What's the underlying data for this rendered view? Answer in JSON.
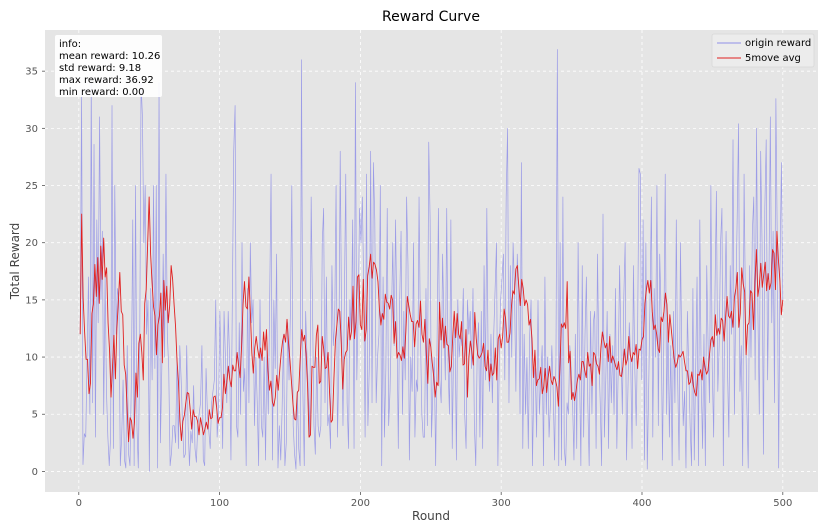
{
  "chart_data": {
    "type": "line",
    "title": "Reward Curve",
    "xlabel": "Round",
    "ylabel": "Total Reward",
    "xlim": [
      -24,
      525
    ],
    "ylim": [
      -1.8,
      38.6
    ],
    "xticks": [
      0,
      100,
      200,
      300,
      400,
      500
    ],
    "yticks": [
      0,
      5,
      10,
      15,
      20,
      25,
      30,
      35
    ],
    "grid": true,
    "legend_position": "top-right",
    "info_box": {
      "position": "top-left",
      "lines": [
        "info:",
        "mean reward: 10.26",
        "std reward: 9.18",
        "max reward: 36.92",
        "min reward: 0.00"
      ]
    },
    "x_start": 1,
    "x_end": 500,
    "series": [
      {
        "name": "origin reward",
        "color": "#8f8fe8",
        "values": [
          12.0,
          33.0,
          0.6,
          3.3,
          3.0,
          10.0,
          17.0,
          5.0,
          34.0,
          6.0,
          28.6,
          3.0,
          22.0,
          13.0,
          31.0,
          15.0,
          21.0,
          5.0,
          17.0,
          7.0,
          3.0,
          0.5,
          3.0,
          32.0,
          2.0,
          25.0,
          12.0,
          16.0,
          15.0,
          0.5,
          3.0,
          8.0,
          1.0,
          0.3,
          11.0,
          1.5,
          0.5,
          8.0,
          22.0,
          0.5,
          25.0,
          4.0,
          0.3,
          10.0,
          34.0,
          31.0,
          20.0,
          25.0,
          12.0,
          15.0,
          0.0,
          16.0,
          8.0,
          25.0,
          9.0,
          25.0,
          0.3,
          34.0,
          2.5,
          9.0,
          19.0,
          10.0,
          26.0,
          12.0,
          9.0,
          0.5,
          1.6,
          4.0,
          4.0,
          2.5,
          10.0,
          2.0,
          11.0,
          8.0,
          4.0,
          1.2,
          1.5,
          11.0,
          4.0,
          0.5,
          3.5,
          2.5,
          7.5,
          2.0,
          0.8,
          4.0,
          5.0,
          6.0,
          11.0,
          1.0,
          0.5,
          9.0,
          5.0,
          3.5,
          2.0,
          6.0,
          7.0,
          8.0,
          15.0,
          3.0,
          5.0,
          14.0,
          8.0,
          2.0,
          14.0,
          10.0,
          6.0,
          14.0,
          10.0,
          1.0,
          15.0,
          28.0,
          32.0,
          4.0,
          3.0,
          13.0,
          5.0,
          20.0,
          7.0,
          9.0,
          0.5,
          16.0,
          6.0,
          20.0,
          13.0,
          15.0,
          4.0,
          10.0,
          6.0,
          0.5,
          15.0,
          4.0,
          3.0,
          10.0,
          1.0,
          11.0,
          5.0,
          15.0,
          26.0,
          1.0,
          15.0,
          9.0,
          19.0,
          0.3,
          4.0,
          1.0,
          5.5,
          12.0,
          0.5,
          2.5,
          13.0,
          8.0,
          14.0,
          25.0,
          4.0,
          1.5,
          0.2,
          7.0,
          2.0,
          0.5,
          36.0,
          7.0,
          0.5,
          14.0,
          10.0,
          7.0,
          3.0,
          24.0,
          14.0,
          4.0,
          1.5,
          10.0,
          4.0,
          3.0,
          4.0,
          20.0,
          23.0,
          6.0,
          17.0,
          4.0,
          5.0,
          2.0,
          18.0,
          11.0,
          13.0,
          25.0,
          3.0,
          9.0,
          28.0,
          13.0,
          4.0,
          15.0,
          26.0,
          6.0,
          2.0,
          15.0,
          12.0,
          22.0,
          2.0,
          34.0,
          8.0,
          14.0,
          23.0,
          20.0,
          24.0,
          16.0,
          3.0,
          26.0,
          4.0,
          9.0,
          28.0,
          6.0,
          27.0,
          22.0,
          6.0,
          10.0,
          12.0,
          25.0,
          0.5,
          17.0,
          3.0,
          9.0,
          23.0,
          4.0,
          7.0,
          13.0,
          20.0,
          11.0,
          22.0,
          13.0,
          2.0,
          15.0,
          21.0,
          5.0,
          14.0,
          8.0,
          24.0,
          18.0,
          1.0,
          10.0,
          7.0,
          20.0,
          3.0,
          8.0,
          7.0,
          24.0,
          12.0,
          5.0,
          3.0,
          3.0,
          16.0,
          4.0,
          28.8,
          22.0,
          3.0,
          7.0,
          10.0,
          0.5,
          11.0,
          23.0,
          8.0,
          6.0,
          19.0,
          13.0,
          8.0,
          23.0,
          9.0,
          5.0,
          22.0,
          2.0,
          11.0,
          13.0,
          1.0,
          15.0,
          10.0,
          12.0,
          11.0,
          16.0,
          5.0,
          2.0,
          15.0,
          12.0,
          14.0,
          9.0,
          16.0,
          4.0,
          0.5,
          10.0,
          13.0,
          3.0,
          14.0,
          2.0,
          18.0,
          8.0,
          23.0,
          9.0,
          7.0,
          12.0,
          6.0,
          12.0,
          16.0,
          20.0,
          0.5,
          10.0,
          15.0,
          17.0,
          19.0,
          8.0,
          24.0,
          30.0,
          6.0,
          18.0,
          10.0,
          20.0,
          16.0,
          7.0,
          19.0,
          16.0,
          5.0,
          27.0,
          2.0,
          12.0,
          5.0,
          10.0,
          2.0,
          12.0,
          15.0,
          0.5,
          8.0,
          9.0,
          3.0,
          15.0,
          5.0,
          8.0,
          11.0,
          0.5,
          17.0,
          5.0,
          10.0,
          3.0,
          6.0,
          11.0,
          7.0,
          1.0,
          10.0,
          36.9,
          0.5,
          20.0,
          1.0,
          24.0,
          2.0,
          0.5,
          6.0,
          5.0,
          11.0,
          9.0,
          6.0,
          1.0,
          12.0,
          2.0,
          20.0,
          9.0,
          0.5,
          18.0,
          3.0,
          12.0,
          17.0,
          6.0,
          0.5,
          14.0,
          5.0,
          13.0,
          14.0,
          2.0,
          19.0,
          10.0,
          6.0,
          0.5,
          22.5,
          3.0,
          8.0,
          14.0,
          2.0,
          12.0,
          6.0,
          11.0,
          5.0,
          16.0,
          2.0,
          9.0,
          18.0,
          11.0,
          5.0,
          15.0,
          20.0,
          1.0,
          7.0,
          13.0,
          10.0,
          2.0,
          18.0,
          9.0,
          4.0,
          12.0,
          26.5,
          26.0,
          8.0,
          22.0,
          1.0,
          20.0,
          0.2,
          7.0,
          15.0,
          24.0,
          3.0,
          16.0,
          10.0,
          25.0,
          4.0,
          19.0,
          14.0,
          1.0,
          12.0,
          26.0,
          5.0,
          13.0,
          3.0,
          11.0,
          0.5,
          14.0,
          6.0,
          22.0,
          8.0,
          1.0,
          20.0,
          10.0,
          4.0,
          7.0,
          0.3,
          14.0,
          9.0,
          4.0,
          0.5,
          16.0,
          1.0,
          9.0,
          17.0,
          0.5,
          22.0,
          8.0,
          2.0,
          12.0,
          0.5,
          18.0,
          11.0,
          6.0,
          25.0,
          9.0,
          3.0,
          16.0,
          24.5,
          7.0,
          11.0,
          20.0,
          23.0,
          0.5,
          14.0,
          21.0,
          9.0,
          3.0,
          18.0,
          12.0,
          29.0,
          5.0,
          15.0,
          22.0,
          30.4,
          7.0,
          11.0,
          0.5,
          26.0,
          14.0,
          6.0,
          0.3,
          18.0,
          10.0,
          21.0,
          24.0,
          8.0,
          30.0,
          14.0,
          5.0,
          28.0,
          20.0,
          1.5,
          23.0,
          29.0,
          8.0,
          17.0,
          31.0,
          13.0,
          21.0,
          6.0,
          32.6,
          20.0,
          0.3,
          18.0,
          27.0,
          15.0
        ]
      },
      {
        "name": "5move avg",
        "color": "#e02020",
        "moving_average_window": 5,
        "values": [
          12.0,
          22.5,
          15.2,
          12.2,
          9.8,
          9.8,
          6.8,
          7.7,
          13.8,
          14.6,
          18.1,
          15.3,
          18.7,
          14.7,
          19.7,
          16.8,
          20.4,
          17.0,
          17.8,
          13.0,
          10.6,
          6.5,
          9.1,
          11.9,
          8.1,
          12.5,
          14.8,
          17.4,
          14.0,
          13.7,
          9.3,
          8.5,
          5.4,
          2.6,
          4.7,
          4.4,
          2.9,
          4.3,
          8.6,
          6.5,
          11.2,
          12.0,
          10.4,
          8.0,
          14.7,
          15.9,
          19.9,
          24.0,
          19.0,
          16.5,
          14.4,
          13.6,
          10.2,
          12.8,
          13.6,
          15.6,
          9.5,
          16.7,
          14.1,
          16.2,
          13.0,
          14.5,
          18.0,
          16.8,
          14.6,
          12.7,
          9.7,
          7.8,
          4.4,
          2.7,
          4.4,
          4.9,
          6.0,
          6.9,
          6.8,
          5.4,
          3.7,
          5.4,
          4.8,
          4.8,
          4.4,
          3.2,
          4.7,
          4.0,
          3.2,
          3.7,
          4.3,
          3.7,
          5.4,
          4.6,
          4.7,
          6.5,
          6.6,
          5.6,
          4.2,
          4.7,
          4.7,
          5.6,
          8.5,
          6.8,
          7.8,
          9.2,
          8.0,
          7.4,
          9.3,
          8.8,
          8.8,
          10.4,
          9.2,
          8.2,
          10.8,
          14.6,
          16.6,
          14.4,
          14.2,
          17.0,
          13.9,
          10.4,
          8.6,
          10.8,
          11.8,
          10.7,
          9.9,
          10.8,
          9.7,
          12.2,
          10.6,
          12.4,
          8.8,
          7.1,
          7.9,
          6.1,
          5.7,
          6.5,
          8.4,
          7.1,
          8.8,
          10.3,
          11.4,
          12.0,
          11.3,
          13.3,
          11.3,
          9.7,
          7.9,
          6.0,
          4.6,
          4.5,
          6.9,
          7.1,
          9.9,
          12.4,
          11.4,
          11.9,
          10.3,
          7.5,
          3.0,
          3.2,
          9.2,
          9.1,
          9.1,
          11.9,
          12.8,
          7.7,
          7.9,
          11.8,
          10.7,
          9.0,
          9.1,
          10.4,
          6.9,
          4.3,
          4.5,
          8.2,
          11.4,
          12.8,
          14.2,
          14.0,
          11.1,
          7.2,
          9.8,
          10.4,
          10.6,
          13.5,
          11.5,
          12.3,
          16.2,
          11.6,
          13.1,
          17.0,
          17.2,
          12.8,
          12.4,
          16.8,
          11.4,
          12.4,
          17.1,
          17.9,
          19.0,
          16.9,
          18.3,
          18.1,
          17.6,
          16.6,
          14.2,
          12.8,
          13.8,
          13.3,
          15.5,
          14.8,
          14.7,
          14.2,
          15.4,
          15.0,
          11.2,
          13.1,
          9.9,
          10.4,
          10.2,
          9.7,
          10.9,
          9.9,
          12.2,
          15.3,
          14.5,
          13.7,
          13.1,
          13.1,
          10.9,
          12.9,
          13.2,
          12.6,
          14.9,
          12.0,
          11.3,
          13.3,
          10.2,
          7.7,
          11.6,
          10.9,
          9.5,
          8.3,
          6.5,
          7.8,
          7.5,
          14.8,
          11.5,
          13.4,
          10.8,
          12.7,
          11.1,
          11.0,
          8.7,
          9.2,
          11.8,
          14.0,
          11.7,
          13.8,
          12.0,
          11.6,
          13.1,
          9.3,
          9.4,
          12.4,
          6.5,
          10.0,
          11.4,
          10.5,
          9.3,
          13.9,
          11.6,
          10.2,
          9.9,
          10.1,
          10.4,
          11.2,
          9.2,
          8.8,
          10.6,
          7.9,
          9.4,
          8.4,
          8.6,
          10.8,
          8.0,
          11.6,
          12.0,
          10.8,
          11.8,
          14.2,
          13.4,
          11.3,
          11.3,
          12.1,
          14.4,
          15.8,
          15.5,
          17.7,
          18.0,
          16.2,
          14.5,
          16.8,
          16.0,
          14.5,
          15.0,
          14.6,
          12.8,
          13.3,
          11.6,
          8.2,
          10.6,
          7.5,
          8.0,
          8.1,
          9.1,
          6.8,
          7.4,
          9.0,
          6.9,
          8.2,
          9.2,
          8.0,
          7.6,
          8.3,
          8.0,
          7.4,
          5.7,
          8.9,
          12.9,
          12.6,
          13.0,
          12.5,
          16.6,
          9.5,
          10.5,
          6.3,
          6.9,
          6.2,
          7.0,
          8.0,
          8.5,
          8.0,
          9.6,
          9.6,
          8.8,
          8.2,
          10.4,
          9.2,
          9.4,
          7.5,
          10.4,
          10.2,
          9.4,
          9.2,
          8.5,
          10.8,
          12.2,
          11.4,
          10.8,
          11.2,
          9.6,
          11.8,
          9.5,
          10.1,
          9.7,
          9.2,
          8.9,
          9.6,
          8.4,
          8.3,
          9.2,
          10.7,
          9.3,
          9.8,
          11.8,
          10.2,
          9.6,
          10.4,
          10.2,
          11.1,
          9.0,
          10.7,
          10.6,
          11.5,
          11.8,
          14.7,
          15.9,
          16.7,
          15.6,
          16.7,
          14.0,
          12.4,
          12.8,
          12.0,
          10.7,
          10.4,
          13.5,
          13.1,
          14.0,
          15.6,
          14.6,
          11.3,
          13.7,
          12.4,
          11.0,
          9.8,
          9.1,
          9.5,
          10.2,
          10.0,
          10.2,
          10.5,
          9.6,
          8.8,
          8.8,
          7.6,
          7.8,
          8.7,
          7.5,
          6.9,
          6.6,
          8.5,
          8.4,
          8.9,
          8.0,
          10.0,
          9.1,
          8.5,
          8.8,
          10.2,
          11.5,
          11.8,
          10.9,
          13.7,
          11.9,
          12.5,
          12.0,
          13.4,
          13.2,
          11.4,
          13.5,
          15.3,
          13.6,
          13.4,
          14.0,
          12.6,
          15.2,
          16.0,
          17.4,
          12.6,
          13.8,
          17.8,
          16.4,
          15.7,
          10.2,
          12.8,
          13.0,
          15.8,
          15.6,
          12.4,
          16.6,
          19.4,
          15.3,
          16.3,
          18.2,
          16.1,
          17.2,
          18.3,
          15.8,
          17.3,
          15.9,
          16.5,
          19.4,
          19.1,
          15.9,
          21.0,
          18.5,
          16.7,
          13.7,
          15.0
        ]
      }
    ]
  }
}
